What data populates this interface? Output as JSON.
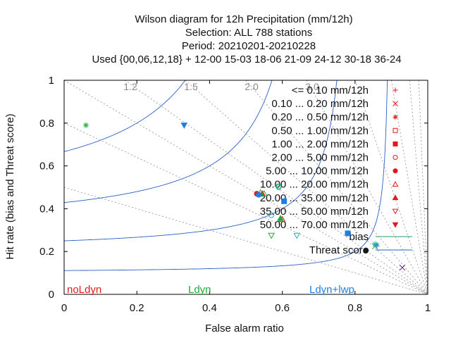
{
  "chart_data": {
    "type": "scatter",
    "title_lines": [
      "Wilson diagram  for 12h Precipitation (mm/12h)",
      "Selection: ALL    788 stations",
      "Period: 20210201-20210228",
      "Used {00,06,12,18} + 12-00 15-03 18-06 21-09 24-12 30-18 36-24"
    ],
    "xlabel": "False alarm ratio",
    "ylabel": "Hit rate (bias and Threat score)",
    "xlim": [
      0,
      1
    ],
    "ylim": [
      0,
      1
    ],
    "x_ticks": [
      "0",
      "0.2",
      "0.4",
      "0.6",
      "0.8",
      "1"
    ],
    "y_ticks": [
      "0",
      "0.2",
      "0.4",
      "0.6",
      "0.8",
      "1"
    ],
    "bias_labels": [
      "1.2",
      "1.5",
      "2.0",
      "3.0"
    ],
    "bias_isolines": [
      0.5,
      0.8,
      1.0,
      1.2,
      1.5,
      2.0,
      3.0,
      5.0,
      10.0,
      20.0,
      40.0
    ],
    "threat_isolines": [
      0.1,
      0.2,
      0.3,
      0.4,
      0.5,
      0.6,
      0.7,
      0.8
    ],
    "line_legend": [
      {
        "label": "bias",
        "color": "#1f9f5f"
      },
      {
        "label": "Threat score",
        "color": "#2b5fc9"
      }
    ],
    "class_legend": [
      {
        "label": "<= 0.10 mm/12h",
        "marker": "plus",
        "color": "#e8161b"
      },
      {
        "label": "0.10 ... 0.20 mm/12h",
        "marker": "cross",
        "color": "#e8161b"
      },
      {
        "label": "0.20 ... 0.50 mm/12h",
        "marker": "star",
        "color": "#e8161b"
      },
      {
        "label": "0.50 ... 1.00 mm/12h",
        "marker": "square-open",
        "color": "#e8161b"
      },
      {
        "label": "1.00 ... 2.00 mm/12h",
        "marker": "square",
        "color": "#e8161b"
      },
      {
        "label": "2.00 ... 5.00 mm/12h",
        "marker": "circle-open",
        "color": "#e8161b"
      },
      {
        "label": "5.00 ... 10.00 mm/12h",
        "marker": "circle",
        "color": "#e8161b"
      },
      {
        "label": "10.00 ... 20.00 mm/12h",
        "marker": "triangle-open",
        "color": "#e8161b"
      },
      {
        "label": "20.00 ... 35.00 mm/12h",
        "marker": "triangle",
        "color": "#e8161b"
      },
      {
        "label": "35.00 ... 50.00 mm/12h",
        "marker": "triangle-down-open",
        "color": "#e8161b"
      },
      {
        "label": "50.00 ... 70.00 mm/12h",
        "marker": "triangle-down",
        "color": "#e8161b"
      }
    ],
    "series": [
      {
        "name": "noLdyn",
        "color": "#e8161b",
        "points": [
          {
            "x": 0.53,
            "y": 0.47,
            "marker": "circle"
          },
          {
            "x": 0.545,
            "y": 0.47,
            "marker": "triangle"
          },
          {
            "x": 0.6,
            "y": 0.35,
            "marker": "triangle-open"
          }
        ]
      },
      {
        "name": "Ldyn",
        "color": "#1faa3a",
        "points": [
          {
            "x": 0.06,
            "y": 0.79,
            "marker": "star"
          },
          {
            "x": 0.54,
            "y": 0.475,
            "marker": "triangle-open"
          },
          {
            "x": 0.59,
            "y": 0.505,
            "marker": "circle-open"
          },
          {
            "x": 0.595,
            "y": 0.355,
            "marker": "triangle"
          },
          {
            "x": 0.855,
            "y": 0.225,
            "marker": "cross"
          }
        ]
      },
      {
        "name": "Ldyn+lwp",
        "color": "#1f7fe0",
        "points": [
          {
            "x": 0.33,
            "y": 0.79,
            "marker": "triangle-down"
          },
          {
            "x": 0.535,
            "y": 0.465,
            "marker": "circle"
          },
          {
            "x": 0.605,
            "y": 0.435,
            "marker": "square"
          },
          {
            "x": 0.78,
            "y": 0.285,
            "marker": "square"
          },
          {
            "x": 0.86,
            "y": 0.23,
            "marker": "star"
          }
        ]
      },
      {
        "name": "",
        "color": "#2bb3a3",
        "points": [
          {
            "x": 0.59,
            "y": 0.5,
            "marker": "circle-open"
          },
          {
            "x": 0.57,
            "y": 0.37,
            "marker": "circle-open"
          },
          {
            "x": 0.64,
            "y": 0.275,
            "marker": "triangle-down-open"
          },
          {
            "x": 0.855,
            "y": 0.235,
            "marker": "star"
          }
        ]
      },
      {
        "name": "",
        "color": "#1faa3a",
        "points": [
          {
            "x": 0.57,
            "y": 0.275,
            "marker": "triangle-down-open"
          },
          {
            "x": 0.55,
            "y": 0.47,
            "marker": "triangle-open"
          }
        ]
      },
      {
        "name": "",
        "color": "#5a2a8a",
        "points": [
          {
            "x": 0.93,
            "y": 0.125,
            "marker": "cross"
          }
        ]
      },
      {
        "name": "",
        "color": "#1a1a1a",
        "points": [
          {
            "x": 0.83,
            "y": 0.205,
            "marker": "circle"
          }
        ]
      }
    ]
  }
}
